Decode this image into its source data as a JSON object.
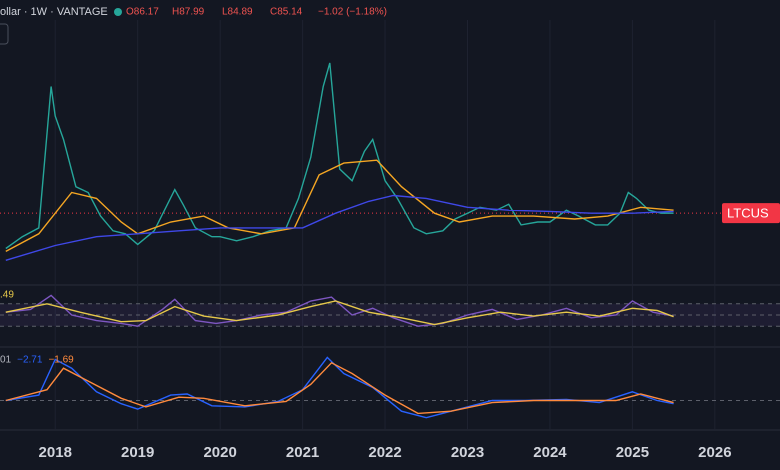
{
  "header": {
    "symbol": "ollar · 1W · VANTAGE",
    "open": "O86.17",
    "high": "H87.99",
    "low": "L84.89",
    "close": "C85.14",
    "change": "−1.02 (−1.18%)"
  },
  "chart_data": [
    {
      "type": "line",
      "xlim": [
        2017.33,
        2026.79
      ],
      "ylim": [
        -37,
        413
      ],
      "xticks": [
        2018,
        2019,
        2020,
        2021,
        2022,
        2023,
        2024,
        2025,
        2026
      ],
      "price_line": {
        "value": 85.14,
        "label": "LTCUS"
      },
      "series": [
        {
          "color": "#26a69a",
          "x": [
            2017.4,
            2017.6,
            2017.8,
            2017.95,
            2018.0,
            2018.1,
            2018.25,
            2018.4,
            2018.55,
            2018.7,
            2018.85,
            2019.0,
            2019.2,
            2019.45,
            2019.55,
            2019.7,
            2019.9,
            2020.0,
            2020.2,
            2020.4,
            2020.6,
            2020.8,
            2020.95,
            2021.1,
            2021.25,
            2021.33,
            2021.45,
            2021.6,
            2021.75,
            2021.85,
            2022.0,
            2022.15,
            2022.35,
            2022.5,
            2022.7,
            2022.85,
            2023.0,
            2023.15,
            2023.35,
            2023.5,
            2023.65,
            2023.85,
            2024.0,
            2024.2,
            2024.35,
            2024.55,
            2024.7,
            2024.85,
            2024.95,
            2025.05,
            2025.2,
            2025.35,
            2025.5
          ],
          "values": [
            25,
            45,
            60,
            300,
            250,
            210,
            130,
            120,
            80,
            55,
            50,
            32,
            55,
            125,
            100,
            60,
            45,
            45,
            38,
            45,
            55,
            60,
            110,
            180,
            300,
            340,
            160,
            140,
            190,
            210,
            140,
            110,
            60,
            50,
            55,
            75,
            85,
            95,
            90,
            100,
            65,
            70,
            70,
            90,
            80,
            65,
            65,
            85,
            120,
            110,
            90,
            85,
            85
          ]
        },
        {
          "color": "#f5a623",
          "x": [
            2017.4,
            2017.8,
            2018.2,
            2018.5,
            2018.8,
            2019.0,
            2019.4,
            2019.8,
            2020.1,
            2020.5,
            2020.9,
            2021.2,
            2021.5,
            2021.9,
            2022.2,
            2022.6,
            2022.9,
            2023.3,
            2023.8,
            2024.3,
            2024.7,
            2025.1,
            2025.5
          ],
          "values": [
            20,
            50,
            120,
            110,
            70,
            50,
            70,
            80,
            60,
            50,
            60,
            150,
            170,
            175,
            130,
            85,
            70,
            80,
            80,
            75,
            80,
            95,
            90
          ]
        },
        {
          "color": "#3f48e8",
          "x": [
            2017.4,
            2018.0,
            2018.5,
            2019.0,
            2019.5,
            2020.0,
            2020.5,
            2021.0,
            2021.4,
            2021.8,
            2022.1,
            2022.5,
            2023.0,
            2023.5,
            2024.0,
            2024.5,
            2025.0,
            2025.5
          ],
          "values": [
            5,
            30,
            45,
            50,
            55,
            60,
            60,
            60,
            85,
            105,
            115,
            110,
            95,
            90,
            88,
            85,
            85,
            88
          ]
        }
      ]
    },
    {
      "type": "line",
      "xlim": [
        2017.33,
        2026.79
      ],
      "ylim": [
        0,
        100
      ],
      "levels": [
        30,
        50,
        70
      ],
      "label": ".49",
      "series": [
        {
          "color": "#7e57c2",
          "x": [
            2017.4,
            2017.7,
            2017.95,
            2018.2,
            2018.5,
            2018.8,
            2019.0,
            2019.3,
            2019.45,
            2019.7,
            2019.95,
            2020.2,
            2020.5,
            2020.8,
            2021.1,
            2021.35,
            2021.6,
            2021.85,
            2022.1,
            2022.4,
            2022.7,
            2023.0,
            2023.3,
            2023.6,
            2023.9,
            2024.2,
            2024.5,
            2024.8,
            2025.0,
            2025.25,
            2025.5
          ],
          "values": [
            55,
            60,
            85,
            50,
            40,
            35,
            30,
            60,
            78,
            40,
            35,
            40,
            50,
            55,
            75,
            82,
            50,
            62,
            45,
            30,
            35,
            50,
            60,
            42,
            50,
            62,
            45,
            50,
            75,
            55,
            48
          ]
        },
        {
          "color": "#e6c84a",
          "x": [
            2017.4,
            2017.9,
            2018.3,
            2018.8,
            2019.1,
            2019.45,
            2019.8,
            2020.2,
            2020.7,
            2021.1,
            2021.4,
            2021.8,
            2022.2,
            2022.6,
            2023.0,
            2023.4,
            2023.8,
            2024.2,
            2024.6,
            2025.0,
            2025.3,
            2025.5
          ],
          "values": [
            55,
            70,
            55,
            38,
            40,
            65,
            48,
            40,
            50,
            65,
            75,
            55,
            45,
            33,
            45,
            55,
            48,
            55,
            48,
            62,
            58,
            47
          ]
        }
      ]
    },
    {
      "type": "line",
      "xlim": [
        2017.33,
        2026.79
      ],
      "ylim": [
        -20,
        45
      ],
      "levels": [
        0
      ],
      "labels": [
        "01",
        "−2.71",
        "−1.69"
      ],
      "series": [
        {
          "color": "#2962ff",
          "x": [
            2017.4,
            2017.8,
            2018.0,
            2018.2,
            2018.5,
            2018.8,
            2019.0,
            2019.4,
            2019.6,
            2019.9,
            2020.3,
            2020.7,
            2021.0,
            2021.3,
            2021.5,
            2021.85,
            2022.2,
            2022.5,
            2022.9,
            2023.3,
            2023.7,
            2024.2,
            2024.6,
            2025.0,
            2025.3,
            2025.5
          ],
          "values": [
            0,
            5,
            38,
            30,
            8,
            -3,
            -8,
            5,
            6,
            -5,
            -6,
            -1,
            10,
            40,
            25,
            12,
            -10,
            -16,
            -8,
            0,
            0,
            1,
            -2,
            8,
            0,
            -3
          ]
        },
        {
          "color": "#ff8a3d",
          "x": [
            2017.4,
            2017.9,
            2018.1,
            2018.4,
            2018.8,
            2019.1,
            2019.5,
            2019.8,
            2020.3,
            2020.8,
            2021.1,
            2021.35,
            2021.6,
            2022.0,
            2022.4,
            2022.8,
            2023.3,
            2023.8,
            2024.4,
            2024.8,
            2025.1,
            2025.5
          ],
          "values": [
            0,
            10,
            30,
            18,
            2,
            -6,
            3,
            2,
            -5,
            -1,
            15,
            35,
            25,
            5,
            -12,
            -10,
            -2,
            0,
            0,
            0,
            6,
            -2
          ]
        }
      ]
    }
  ]
}
